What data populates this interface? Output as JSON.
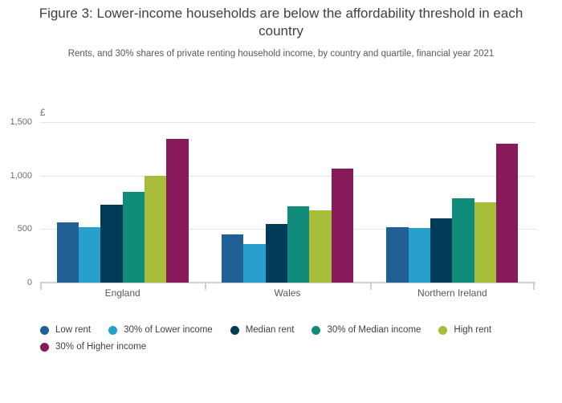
{
  "chart_data": {
    "type": "bar",
    "title": "Figure 3: Lower-income households are below the affordability threshold in each country",
    "subtitle": "Rents, and 30% shares of private renting household income, by country and quartile, financial year 2021",
    "unit_label": "£",
    "categories": [
      "England",
      "Wales",
      "Northern Ireland"
    ],
    "series": [
      {
        "name": "Low rent",
        "color": "#206095",
        "values": [
          560,
          450,
          520
        ]
      },
      {
        "name": "30% of Lower income",
        "color": "#27A0CC",
        "values": [
          515,
          360,
          510
        ]
      },
      {
        "name": "Median rent",
        "color": "#003C57",
        "values": [
          725,
          545,
          600
        ]
      },
      {
        "name": "30% of Median income",
        "color": "#118C7B",
        "values": [
          845,
          710,
          785
        ]
      },
      {
        "name": "High rent",
        "color": "#A8BD3A",
        "values": [
          995,
          675,
          750
        ]
      },
      {
        "name": "30% of Higher income",
        "color": "#871A5B",
        "values": [
          1340,
          1065,
          1300
        ]
      }
    ],
    "ylim": [
      0,
      1500
    ],
    "yticks": [
      {
        "value": 0,
        "label": "0"
      },
      {
        "value": 500,
        "label": "500"
      },
      {
        "value": 1000,
        "label": "1,000"
      },
      {
        "value": 1500,
        "label": "1,500"
      }
    ],
    "grid": "horizontal",
    "legend_position": "bottom-left"
  }
}
